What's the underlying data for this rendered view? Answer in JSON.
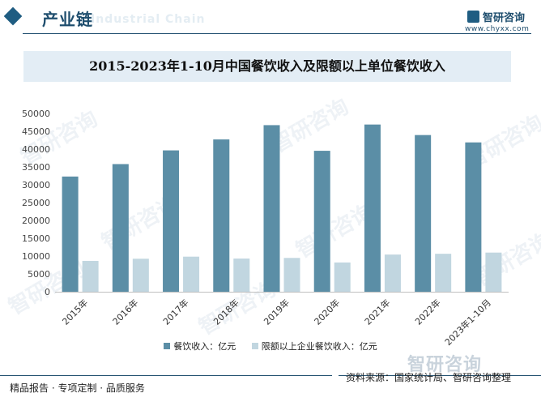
{
  "header": {
    "section_title": "产业链",
    "section_watermark": "Industrial Chain",
    "brand_name": "智研咨询",
    "brand_url": "www.chyxx.com"
  },
  "watermark_text": "智研咨询",
  "footer": {
    "left_text": "精品报告 · 专项定制 · 品质服务",
    "right_text": "资料来源：国家统计局、智研咨询整理",
    "brand_watermark": "智研咨询"
  },
  "colors": {
    "series_dark": "#5b8ea6",
    "series_light": "#c1d6e0",
    "header_blue": "#1f4e6e",
    "title_box": "#e3edf5"
  },
  "chart_data": {
    "type": "bar",
    "title": "2015-2023年1-10月中国餐饮收入及限额以上单位餐饮收入",
    "categories": [
      "2015年",
      "2016年",
      "2017年",
      "2018年",
      "2019年",
      "2020年",
      "2021年",
      "2022年",
      "2023年1-10月"
    ],
    "series": [
      {
        "name": "餐饮收入：亿元",
        "values": [
          32310,
          35800,
          39644,
          42716,
          46721,
          39527,
          46895,
          43941,
          41880
        ]
      },
      {
        "name": "限额以上企业餐饮收入：亿元",
        "values": [
          8650,
          9255,
          9840,
          9305,
          9480,
          8210,
          10430,
          10650,
          10980
        ]
      }
    ],
    "ylim": [
      0,
      50000
    ],
    "yticks": [
      0,
      5000,
      10000,
      15000,
      20000,
      25000,
      30000,
      35000,
      40000,
      45000,
      50000
    ],
    "grid": false,
    "legend": "bottom"
  }
}
